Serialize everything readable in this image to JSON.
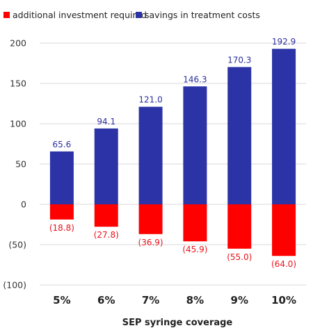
{
  "chart_data": {
    "type": "bar",
    "categories": [
      "5%",
      "6%",
      "7%",
      "8%",
      "9%",
      "10%"
    ],
    "series": [
      {
        "name": "additional investment required",
        "values": [
          -18.8,
          -27.8,
          -36.9,
          -45.9,
          -55.0,
          -64.0
        ],
        "labels": [
          "(18.8)",
          "(27.8)",
          "(36.9)",
          "(45.9)",
          "(55.0)",
          "(64.0)"
        ],
        "color": "#ff0000",
        "label_color": "#e8121c"
      },
      {
        "name": "savings in treatment costs",
        "values": [
          65.6,
          94.1,
          121.0,
          146.3,
          170.3,
          192.9
        ],
        "labels": [
          "65.6",
          "94.1",
          "121.0",
          "146.3",
          "170.3",
          "192.9"
        ],
        "color": "#2b33a6",
        "label_color": "#2a2e9e"
      }
    ],
    "xlabel": "SEP syringe coverage",
    "ylabel": "",
    "ylim": [
      -100,
      200
    ],
    "yticks": [
      200,
      150,
      100,
      50,
      0,
      -50,
      -100
    ],
    "ytick_labels": [
      "200",
      "150",
      "100",
      "50",
      "0",
      "(50)",
      "(100)"
    ],
    "grid": true,
    "legend": "top"
  }
}
